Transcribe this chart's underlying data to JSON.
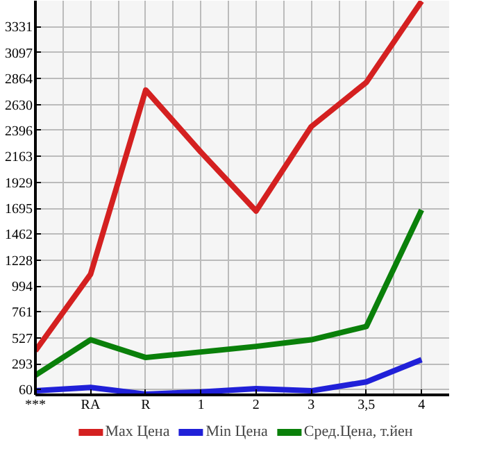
{
  "chart_data": {
    "type": "line",
    "categories": [
      "***",
      "RA",
      "R",
      "1",
      "2",
      "3",
      "3,5",
      "4"
    ],
    "series": [
      {
        "name": "Max Цена",
        "color": "#d42020",
        "values": [
          410,
          1100,
          2760,
          2200,
          1670,
          2430,
          2830,
          3560
        ]
      },
      {
        "name": "Min Цена",
        "color": "#2020d8",
        "values": [
          50,
          80,
          20,
          40,
          70,
          50,
          130,
          330
        ]
      },
      {
        "name": "Сред.Цена, т.йен",
        "color": "#0a800a",
        "values": [
          190,
          510,
          350,
          400,
          450,
          510,
          630,
          1680
        ]
      }
    ],
    "ylim": [
      13,
      3565
    ],
    "yticks": [
      60,
      293,
      527,
      761,
      994,
      1228,
      1462,
      1695,
      1929,
      2163,
      2396,
      2630,
      2864,
      3097,
      3331
    ],
    "grid": true,
    "legend": "bottom",
    "marker": "none",
    "line_style": "solid"
  }
}
